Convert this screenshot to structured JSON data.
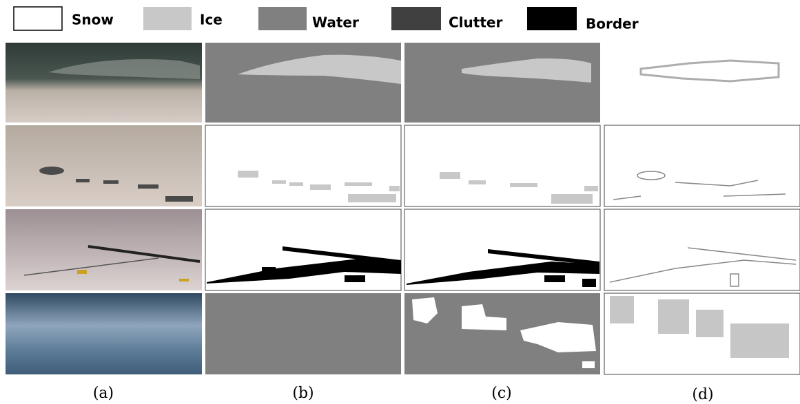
{
  "legend": [
    {
      "label": "Snow"
    },
    {
      "label": "Ice"
    },
    {
      "label": "Water"
    },
    {
      "label": "Clutter"
    },
    {
      "label": "Border"
    }
  ],
  "captions": [
    "(a)",
    "(b)",
    "(c)",
    "(d)"
  ]
}
